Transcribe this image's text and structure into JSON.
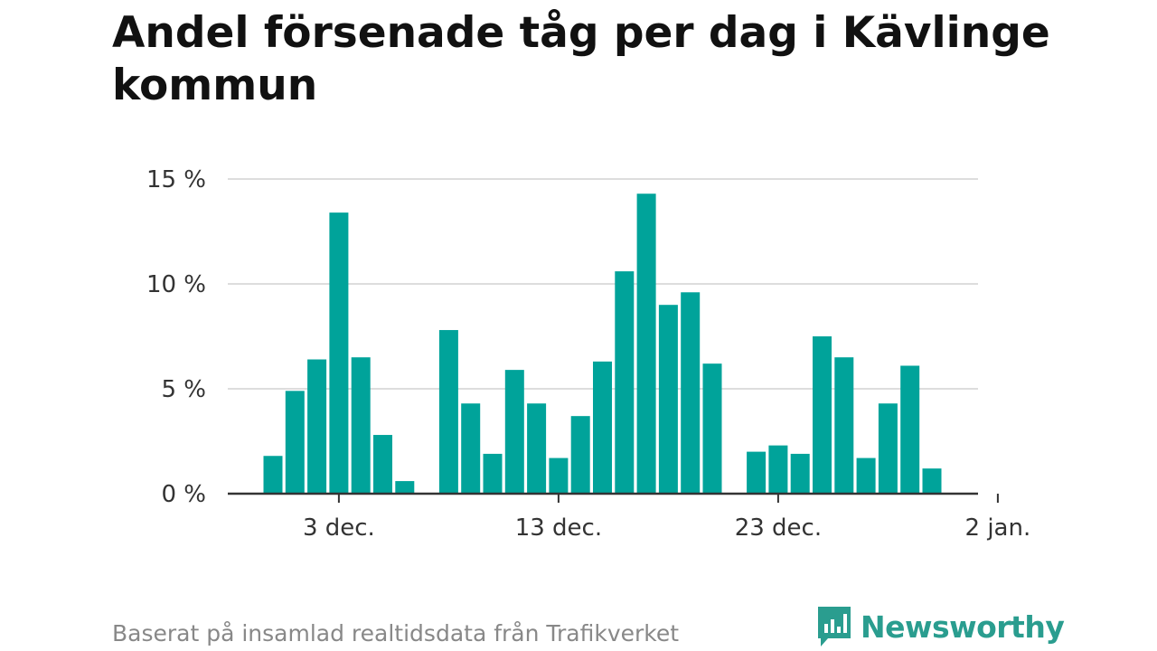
{
  "title": "Andel försenade tåg per dag i Kävlinge kommun",
  "footnote": "Baserat på insamlad realtidsdata från Trafikverket",
  "brand": {
    "name": "Newsworthy",
    "icon": "bar-chart-speech-icon",
    "color": "#2a9d8f"
  },
  "chart_data": {
    "type": "bar",
    "ylim": [
      0,
      15
    ],
    "y_ticks": [
      {
        "value": 0,
        "label": "0 %"
      },
      {
        "value": 5,
        "label": "5 %"
      },
      {
        "value": 10,
        "label": "10 %"
      },
      {
        "value": 15,
        "label": "15 %"
      }
    ],
    "x_ticks": [
      {
        "label": "3 dec.",
        "x": 3
      },
      {
        "label": "13 dec.",
        "x": 13
      },
      {
        "label": "23 dec.",
        "x": 23
      },
      {
        "label": "2 jan.",
        "x": 33
      }
    ],
    "x_domain": [
      -0.5,
      33
    ],
    "grid": true,
    "bar_color": "#00a39a",
    "values": [
      1.8,
      4.9,
      6.4,
      13.4,
      6.5,
      2.8,
      0.6,
      0,
      7.8,
      4.3,
      1.9,
      5.9,
      4.3,
      1.7,
      3.7,
      6.3,
      10.6,
      14.3,
      9.0,
      9.6,
      6.2,
      0,
      2.0,
      2.3,
      1.9,
      7.5,
      6.5,
      1.7,
      4.3,
      6.1,
      1.2
    ]
  }
}
